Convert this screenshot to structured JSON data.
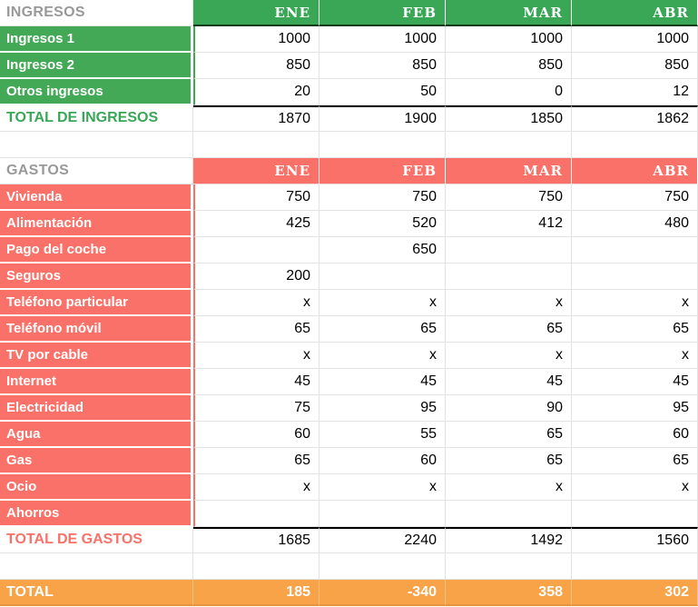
{
  "palette": {
    "header_green": "#3aa757",
    "label_green": "#43a957",
    "header_red": "#f97168",
    "total_orange": "#f9a348",
    "section_title_gray": "#999999",
    "gridline_gray": "#e3e3e3",
    "sum_border_black": "#000000"
  },
  "income": {
    "section_title": "INGRESOS",
    "months": [
      "ENE",
      "FEB",
      "MAR",
      "ABR"
    ],
    "rows": [
      {
        "label": "Ingresos 1",
        "values": [
          "1000",
          "1000",
          "1000",
          "1000"
        ]
      },
      {
        "label": "Ingresos 2",
        "values": [
          "850",
          "850",
          "850",
          "850"
        ]
      },
      {
        "label": "Otros ingresos",
        "values": [
          "20",
          "50",
          "0",
          "12"
        ]
      }
    ],
    "total": {
      "label": "TOTAL DE INGRESOS",
      "values": [
        "1870",
        "1900",
        "1850",
        "1862"
      ]
    }
  },
  "expenses": {
    "section_title": "GASTOS",
    "months": [
      "ENE",
      "FEB",
      "MAR",
      "ABR"
    ],
    "rows": [
      {
        "label": "Vivienda",
        "values": [
          "750",
          "750",
          "750",
          "750"
        ]
      },
      {
        "label": "Alimentación",
        "values": [
          "425",
          "520",
          "412",
          "480"
        ]
      },
      {
        "label": "Pago del coche",
        "values": [
          "",
          "650",
          "",
          ""
        ]
      },
      {
        "label": "Seguros",
        "values": [
          "200",
          "",
          "",
          ""
        ]
      },
      {
        "label": "Teléfono particular",
        "values": [
          "x",
          "x",
          "x",
          "x"
        ]
      },
      {
        "label": "Teléfono móvil",
        "values": [
          "65",
          "65",
          "65",
          "65"
        ]
      },
      {
        "label": "TV por cable",
        "values": [
          "x",
          "x",
          "x",
          "x"
        ]
      },
      {
        "label": "Internet",
        "values": [
          "45",
          "45",
          "45",
          "45"
        ]
      },
      {
        "label": "Electricidad",
        "values": [
          "75",
          "95",
          "90",
          "95"
        ]
      },
      {
        "label": "Agua",
        "values": [
          "60",
          "55",
          "65",
          "60"
        ]
      },
      {
        "label": "Gas",
        "values": [
          "65",
          "60",
          "65",
          "65"
        ]
      },
      {
        "label": "Ocio",
        "values": [
          "x",
          "x",
          "x",
          "x"
        ]
      },
      {
        "label": "Ahorros",
        "values": [
          "",
          "",
          "",
          ""
        ]
      }
    ],
    "total": {
      "label": "TOTAL DE GASTOS",
      "values": [
        "1685",
        "2240",
        "1492",
        "1560"
      ]
    }
  },
  "grand_total": {
    "label": "TOTAL",
    "values": [
      "185",
      "-340",
      "358",
      "302"
    ]
  }
}
